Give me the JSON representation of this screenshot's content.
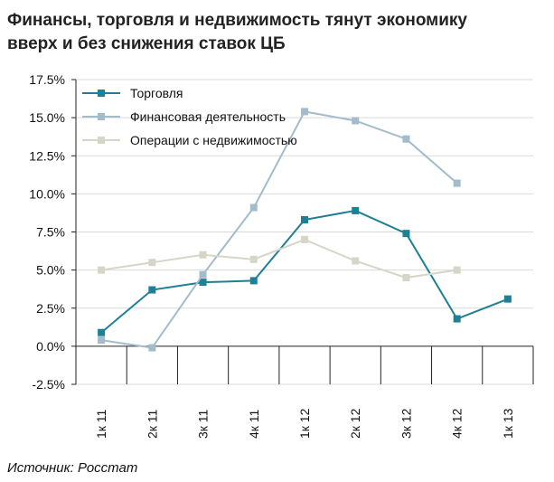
{
  "title_line1": "Финансы, торговля и недвижимость тянут экономику",
  "title_line2": "вверх и без снижения ставок ЦБ",
  "source": "Источник: Росстат",
  "chart_data": {
    "type": "line",
    "categories": [
      "1к 11",
      "2к 11",
      "3к 11",
      "4к 11",
      "1к 12",
      "2к 12",
      "3к 12",
      "4к 12",
      "1к 13"
    ],
    "y_ticks": [
      "17.5%",
      "15.0%",
      "12.5%",
      "10.0%",
      "7.5%",
      "5.0%",
      "2.5%",
      "0.0%",
      "-2.5%"
    ],
    "ylim": [
      -2.5,
      17.5
    ],
    "grid": "horizontal",
    "legend_position": "top-left",
    "series": [
      {
        "name": "Торговля",
        "color": "#1f7f95",
        "values": [
          0.9,
          3.7,
          4.2,
          4.3,
          8.3,
          8.9,
          7.4,
          1.8,
          3.1
        ]
      },
      {
        "name": "Финансовая деятельность",
        "color": "#a2bcc9",
        "values": [
          0.4,
          -0.1,
          4.7,
          9.1,
          15.4,
          14.8,
          13.6,
          10.7,
          null
        ]
      },
      {
        "name": "Операции с недвижимостью",
        "color": "#d6d6c8",
        "values": [
          5.0,
          5.5,
          6.0,
          5.7,
          7.0,
          5.6,
          4.5,
          5.0,
          null
        ]
      }
    ]
  }
}
